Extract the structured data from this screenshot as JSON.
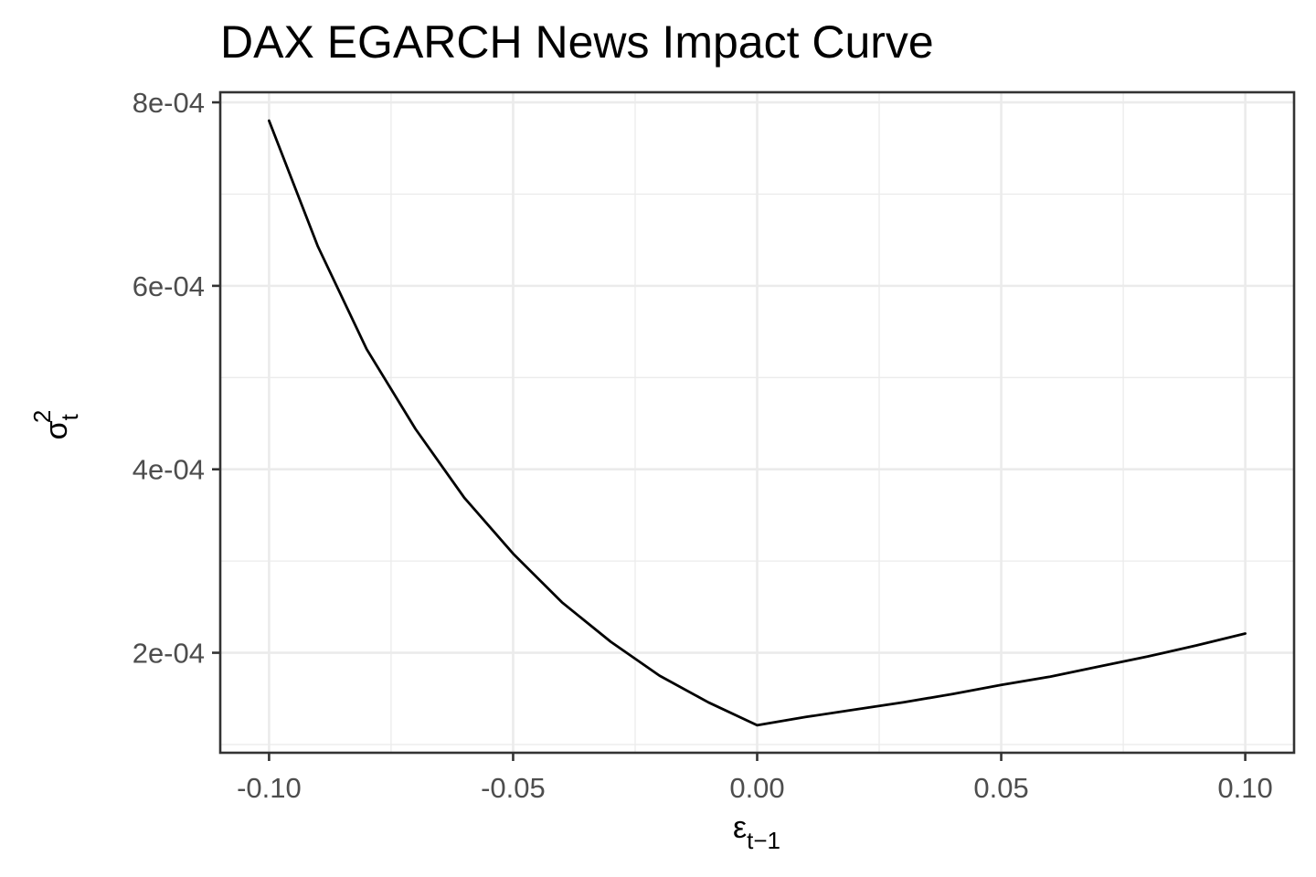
{
  "chart_data": {
    "type": "line",
    "title": "DAX EGARCH News Impact Curve",
    "xlabel": {
      "base": "ε",
      "subscript": "t−1"
    },
    "ylabel": {
      "base": "σ",
      "subscript": "t",
      "superscript": "2"
    },
    "xlim": [
      -0.11,
      0.11
    ],
    "ylim": [
      9.1e-05,
      0.000811
    ],
    "x_ticks": [
      -0.1,
      -0.05,
      0.0,
      0.05,
      0.1
    ],
    "x_tick_labels": [
      "-0.10",
      "-0.05",
      "0.00",
      "0.05",
      "0.10"
    ],
    "y_ticks": [
      0.0002,
      0.0004,
      0.0006,
      0.0008
    ],
    "y_tick_labels": [
      "2e-04",
      "4e-04",
      "6e-04",
      "8e-04"
    ],
    "x_minor": [
      -0.075,
      -0.025,
      0.025,
      0.075
    ],
    "y_minor": [
      0.0001,
      0.0003,
      0.0005,
      0.0007
    ],
    "grid": true,
    "series": [
      {
        "x": [
          -0.1,
          -0.09,
          -0.08,
          -0.07,
          -0.06,
          -0.05,
          -0.04,
          -0.03,
          -0.02,
          -0.01,
          0.0,
          0.01,
          0.02,
          0.03,
          0.04,
          0.05,
          0.06,
          0.07,
          0.08,
          0.09,
          0.1
        ],
        "y": [
          0.00078,
          0.000643,
          0.000531,
          0.000444,
          0.000369,
          0.000308,
          0.000255,
          0.000212,
          0.000175,
          0.000146,
          0.000121,
          0.00013,
          0.000138,
          0.000146,
          0.000155,
          0.000165,
          0.000174,
          0.000185,
          0.000196,
          0.000208,
          0.000221
        ]
      }
    ]
  }
}
